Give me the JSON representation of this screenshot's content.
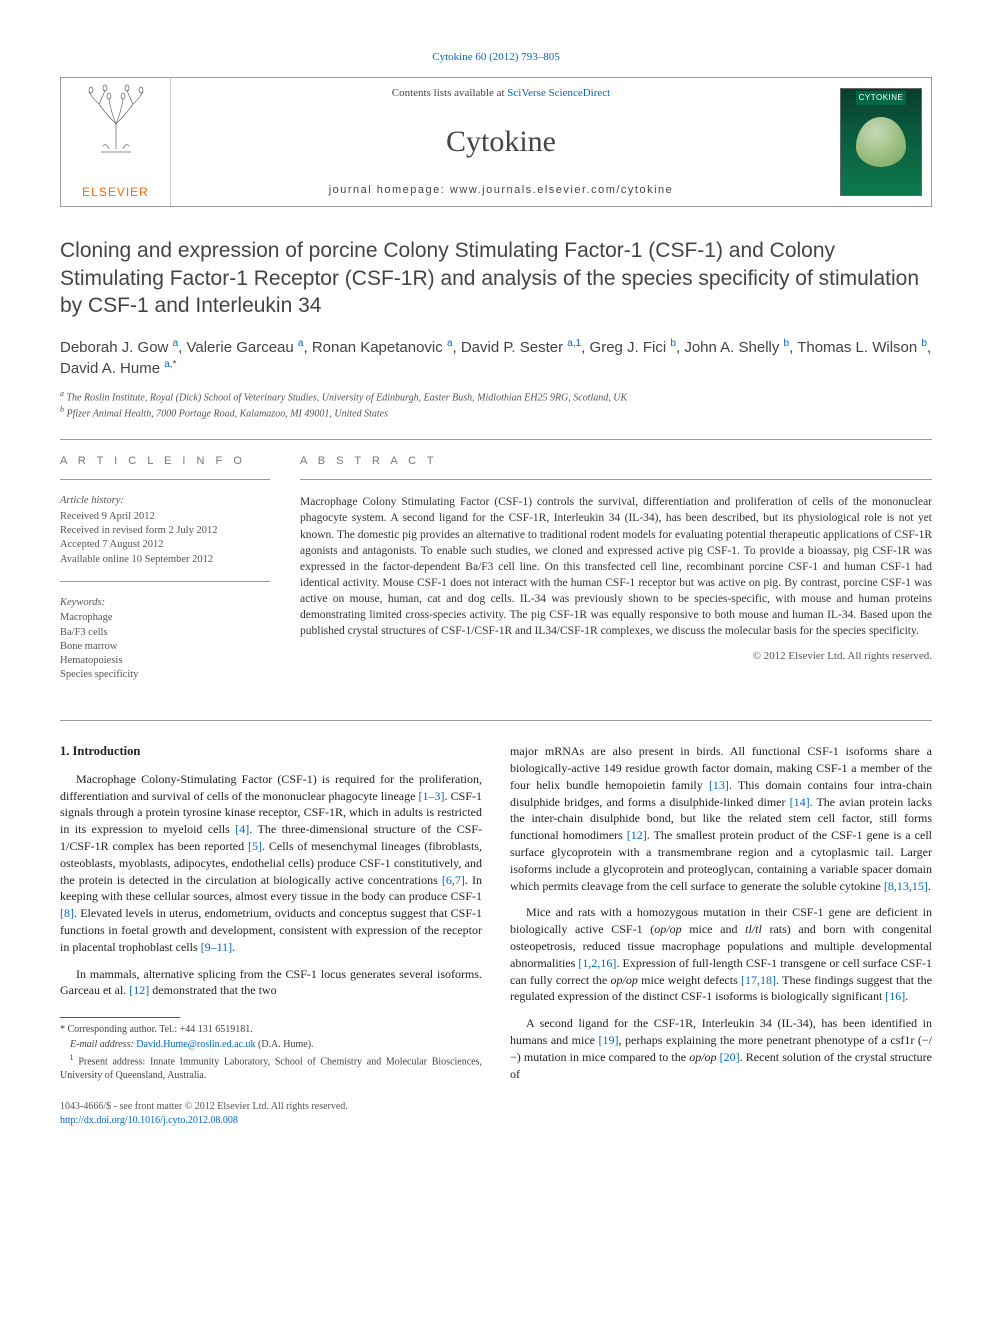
{
  "top_ref": "Cytokine 60 (2012) 793–805",
  "header": {
    "contents_prefix": "Contents lists available at ",
    "contents_link": "SciVerse ScienceDirect",
    "journal_name": "Cytokine",
    "homepage_label": "journal homepage: www.journals.elsevier.com/cytokine",
    "publisher": "ELSEVIER",
    "cover_label": "CYTOKINE"
  },
  "title": "Cloning and expression of porcine Colony Stimulating Factor-1 (CSF-1) and Colony Stimulating Factor-1 Receptor (CSF-1R) and analysis of the species specificity of stimulation by CSF-1 and Interleukin 34",
  "authors": [
    {
      "name": "Deborah J. Gow",
      "sup": "a"
    },
    {
      "name": "Valerie Garceau",
      "sup": "a"
    },
    {
      "name": "Ronan Kapetanovic",
      "sup": "a"
    },
    {
      "name": "David P. Sester",
      "sup": "a,1"
    },
    {
      "name": "Greg J. Fici",
      "sup": "b"
    },
    {
      "name": "John A. Shelly",
      "sup": "b"
    },
    {
      "name": "Thomas L. Wilson",
      "sup": "b"
    },
    {
      "name": "David A. Hume",
      "sup": "a,",
      "corr": "*"
    }
  ],
  "affiliations": [
    {
      "sup": "a",
      "text": "The Roslin Institute, Royal (Dick) School of Veterinary Studies, University of Edinburgh, Easter Bush, Midlothian EH25 9RG, Scotland, UK"
    },
    {
      "sup": "b",
      "text": "Pfizer Animal Health, 7000 Portage Road, Kalamazoo, MI 49001, United States"
    }
  ],
  "article_info": {
    "heading": "A R T I C L E   I N F O",
    "history_label": "Article history:",
    "history": [
      "Received 9 April 2012",
      "Received in revised form 2 July 2012",
      "Accepted 7 August 2012",
      "Available online 10 September 2012"
    ],
    "keywords_label": "Keywords:",
    "keywords": [
      "Macrophage",
      "Ba/F3 cells",
      "Bone marrow",
      "Hematopoiesis",
      "Species specificity"
    ]
  },
  "abstract": {
    "heading": "A B S T R A C T",
    "text": "Macrophage Colony Stimulating Factor (CSF-1) controls the survival, differentiation and proliferation of cells of the mononuclear phagocyte system. A second ligand for the CSF-1R, Interleukin 34 (IL-34), has been described, but its physiological role is not yet known. The domestic pig provides an alternative to traditional rodent models for evaluating potential therapeutic applications of CSF-1R agonists and antagonists. To enable such studies, we cloned and expressed active pig CSF-1. To provide a bioassay, pig CSF-1R was expressed in the factor-dependent Ba/F3 cell line. On this transfected cell line, recombinant porcine CSF-1 and human CSF-1 had identical activity. Mouse CSF-1 does not interact with the human CSF-1 receptor but was active on pig. By contrast, porcine CSF-1 was active on mouse, human, cat and dog cells. IL-34 was previously shown to be species-specific, with mouse and human proteins demonstrating limited cross-species activity. The pig CSF-1R was equally responsive to both mouse and human IL-34. Based upon the published crystal structures of CSF-1/CSF-1R and IL34/CSF-1R complexes, we discuss the molecular basis for the species specificity.",
    "copyright": "© 2012 Elsevier Ltd. All rights reserved."
  },
  "body": {
    "section_heading": "1. Introduction",
    "left_paras": [
      {
        "pre": "Macrophage Colony-Stimulating Factor (CSF-1) is required for the proliferation, differentiation and survival of cells of the mononuclear phagocyte lineage ",
        "r1": "[1–3]",
        "mid1": ". CSF-1 signals through a protein tyrosine kinase receptor, CSF-1R, which in adults is restricted in its expression to myeloid cells ",
        "r2": "[4]",
        "mid2": ". The three-dimensional structure of the CSF-1/CSF-1R complex has been reported ",
        "r3": "[5]",
        "mid3": ". Cells of mesenchymal lineages (fibroblasts, osteoblasts, myoblasts, adipocytes, endothelial cells) produce CSF-1 constitutively, and the protein is detected in the circulation at biologically active concentrations ",
        "r4": "[6,7]",
        "mid4": ". In keeping with these cellular sources, almost every tissue in the body can produce CSF-1 ",
        "r5": "[8]",
        "mid5": ". Elevated levels in uterus, endometrium, oviducts and conceptus suggest that CSF-1 functions in foetal growth and development, consistent with expression of the receptor in placental trophoblast cells ",
        "r6": "[9–11]",
        "post": "."
      },
      {
        "pre": "In mammals, alternative splicing from the CSF-1 locus generates several isoforms. Garceau et al. ",
        "r1": "[12]",
        "post": " demonstrated that the two"
      }
    ],
    "right_paras": [
      {
        "pre": "major mRNAs are also present in birds. All functional CSF-1 isoforms share a biologically-active 149 residue growth factor domain, making CSF-1 a member of the four helix bundle hemopoietin family ",
        "r1": "[13]",
        "mid1": ". This domain contains four intra-chain disulphide bridges, and forms a disulphide-linked dimer ",
        "r2": "[14]",
        "mid2": ". The avian protein lacks the inter-chain disulphide bond, but like the related stem cell factor, still forms functional homodimers ",
        "r3": "[12]",
        "mid3": ". The smallest protein product of the CSF-1 gene is a cell surface glycoprotein with a transmembrane region and a cytoplasmic tail. Larger isoforms include a glycoprotein and proteoglycan, containing a variable spacer domain which permits cleavage from the cell surface to generate the soluble cytokine ",
        "r4": "[8,13,15]",
        "post": "."
      },
      {
        "pre": "Mice and rats with a homozygous mutation in their CSF-1 gene are deficient in biologically active CSF-1 (",
        "it1": "op/op",
        "mid1": " mice and ",
        "it2": "tl/tl",
        "mid2": " rats) and born with congenital osteopetrosis, reduced tissue macrophage populations and multiple developmental abnormalities ",
        "r1": "[1,2,16]",
        "mid3": ". Expression of full-length CSF-1 transgene or cell surface CSF-1 can fully correct the ",
        "it3": "op/op",
        "mid4": " mice weight defects ",
        "r2": "[17,18]",
        "mid5": ". These findings suggest that the regulated expression of the distinct CSF-1 isoforms is biologically significant ",
        "r3": "[16]",
        "post": "."
      },
      {
        "pre": "A second ligand for the CSF-1R, Interleukin 34 (IL-34), has been identified in humans and mice ",
        "r1": "[19]",
        "mid1": ", perhaps explaining the more penetrant phenotype of a csf1r (−/−) mutation in mice compared to the ",
        "it1": "op/op",
        "mid2": " ",
        "r2": "[20]",
        "post": ". Recent solution of the crystal structure of"
      }
    ]
  },
  "footnotes": {
    "corr_label": "* Corresponding author. Tel.: +44 131 6519181.",
    "email_label": "E-mail address: ",
    "email": "David.Hume@roslin.ed.ac.uk",
    "email_suffix": " (D.A. Hume).",
    "present_sup": "1",
    "present": " Present address: Innate Immunity Laboratory, School of Chemistry and Molecular Biosciences, University of Queensland, Australia."
  },
  "bottom": {
    "issn_line": "1043-4666/$ - see front matter © 2012 Elsevier Ltd. All rights reserved.",
    "doi_label": "http://dx.doi.org/10.1016/j.cyto.2012.08.008"
  },
  "colors": {
    "link": "#0066cc",
    "publisher": "#ff6600",
    "text": "#1a1a1a",
    "muted": "#555555"
  }
}
